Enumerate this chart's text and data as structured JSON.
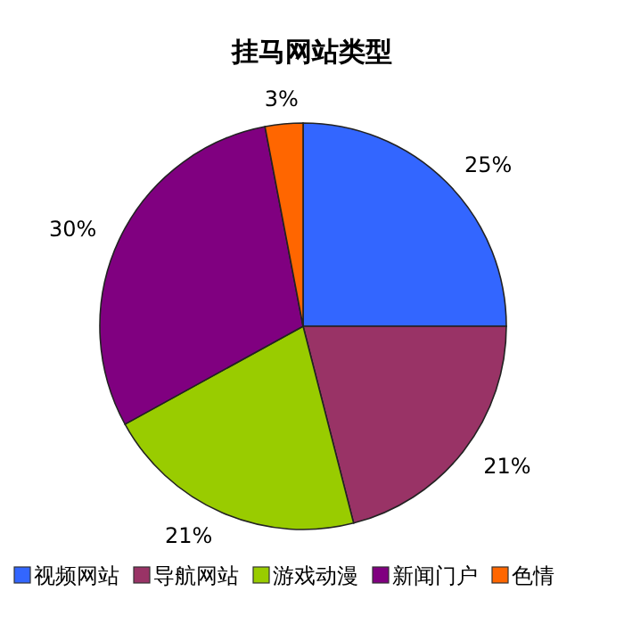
{
  "chart_data": {
    "type": "pie",
    "title": "挂马网站类型",
    "categories": [
      "视频网站",
      "导航网站",
      "游戏动漫",
      "新闻门户",
      "色情"
    ],
    "values": [
      25,
      21,
      21,
      30,
      3
    ],
    "value_labels": [
      "25%",
      "21%",
      "21%",
      "30%",
      "3%"
    ],
    "colors": [
      "#3366ff",
      "#993366",
      "#99cc00",
      "#800080",
      "#ff6600"
    ],
    "legend": "bottom"
  }
}
